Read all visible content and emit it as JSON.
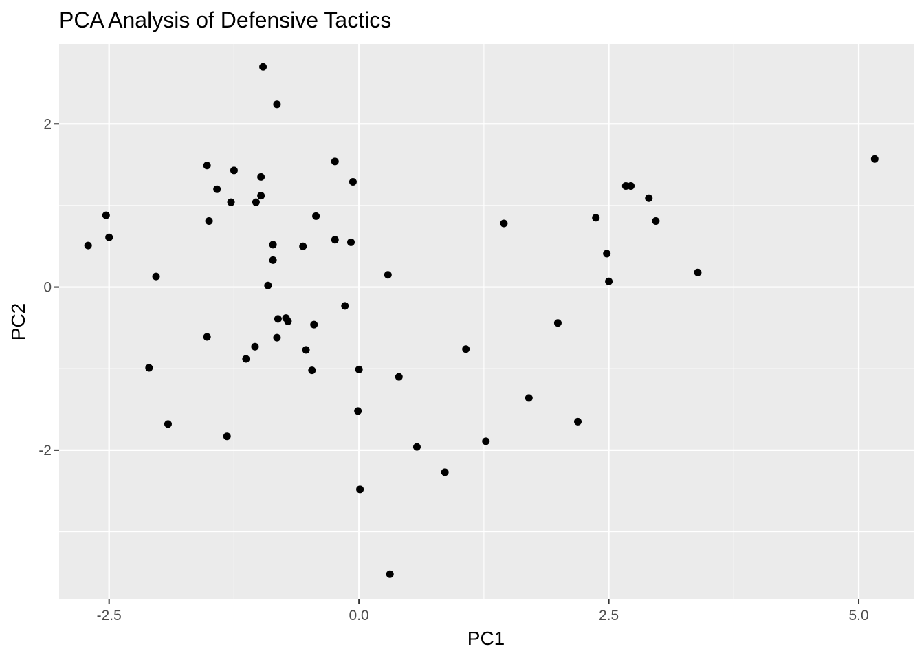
{
  "chart_data": {
    "type": "scatter",
    "title": "PCA Analysis of Defensive Tactics",
    "xlabel": "PC1",
    "ylabel": "PC2",
    "xlim": [
      -3.0,
      5.55
    ],
    "ylim": [
      -3.83,
      2.98
    ],
    "x_ticks": [
      -2.5,
      0.0,
      2.5,
      5.0
    ],
    "x_tick_labels": [
      "-2.5",
      "0.0",
      "2.5",
      "5.0"
    ],
    "y_ticks": [
      -2,
      0,
      2
    ],
    "y_tick_labels": [
      "-2",
      "0",
      "2"
    ],
    "x_minor_ticks": [
      -1.25,
      1.25,
      3.75
    ],
    "y_minor_ticks": [
      -3,
      -1,
      1
    ],
    "grid": true,
    "legend": "none",
    "colors": {
      "panel": "#ebebeb",
      "grid": "#ffffff",
      "point": "#000000"
    },
    "points": [
      {
        "x": -0.96,
        "y": 2.7
      },
      {
        "x": -0.82,
        "y": 2.24
      },
      {
        "x": -1.52,
        "y": 1.49
      },
      {
        "x": -1.25,
        "y": 1.43
      },
      {
        "x": -0.98,
        "y": 1.35
      },
      {
        "x": -1.42,
        "y": 1.2
      },
      {
        "x": -0.98,
        "y": 1.12
      },
      {
        "x": -1.28,
        "y": 1.04
      },
      {
        "x": -1.03,
        "y": 1.04
      },
      {
        "x": -1.5,
        "y": 0.81
      },
      {
        "x": -0.24,
        "y": 1.54
      },
      {
        "x": -0.06,
        "y": 1.29
      },
      {
        "x": -0.43,
        "y": 0.87
      },
      {
        "x": -0.24,
        "y": 0.58
      },
      {
        "x": -0.08,
        "y": 0.55
      },
      {
        "x": -0.86,
        "y": 0.52
      },
      {
        "x": -0.56,
        "y": 0.5
      },
      {
        "x": -0.86,
        "y": 0.33
      },
      {
        "x": -0.91,
        "y": 0.02
      },
      {
        "x": -2.53,
        "y": 0.88
      },
      {
        "x": -2.5,
        "y": 0.61
      },
      {
        "x": -2.71,
        "y": 0.51
      },
      {
        "x": -2.03,
        "y": 0.13
      },
      {
        "x": 0.29,
        "y": 0.15
      },
      {
        "x": -0.81,
        "y": -0.39
      },
      {
        "x": -0.73,
        "y": -0.38
      },
      {
        "x": -0.71,
        "y": -0.42
      },
      {
        "x": -0.45,
        "y": -0.46
      },
      {
        "x": -0.14,
        "y": -0.23
      },
      {
        "x": -1.52,
        "y": -0.61
      },
      {
        "x": -0.82,
        "y": -0.62
      },
      {
        "x": -1.04,
        "y": -0.73
      },
      {
        "x": -1.13,
        "y": -0.88
      },
      {
        "x": -0.53,
        "y": -0.77
      },
      {
        "x": -0.47,
        "y": -1.02
      },
      {
        "x": 0.0,
        "y": -1.01
      },
      {
        "x": 0.4,
        "y": -1.1
      },
      {
        "x": -2.1,
        "y": -0.99
      },
      {
        "x": -1.91,
        "y": -1.68
      },
      {
        "x": -1.32,
        "y": -1.83
      },
      {
        "x": -0.01,
        "y": -1.52
      },
      {
        "x": 0.58,
        "y": -1.96
      },
      {
        "x": 0.01,
        "y": -2.48
      },
      {
        "x": 0.86,
        "y": -2.27
      },
      {
        "x": 1.27,
        "y": -1.89
      },
      {
        "x": 1.07,
        "y": -0.76
      },
      {
        "x": 0.31,
        "y": -3.52
      },
      {
        "x": 1.45,
        "y": 0.78
      },
      {
        "x": 1.7,
        "y": -1.36
      },
      {
        "x": 1.99,
        "y": -0.44
      },
      {
        "x": 2.19,
        "y": -1.65
      },
      {
        "x": 2.37,
        "y": 0.85
      },
      {
        "x": 2.48,
        "y": 0.41
      },
      {
        "x": 2.5,
        "y": 0.07
      },
      {
        "x": 2.67,
        "y": 1.24
      },
      {
        "x": 2.72,
        "y": 1.24
      },
      {
        "x": 2.9,
        "y": 1.09
      },
      {
        "x": 2.97,
        "y": 0.81
      },
      {
        "x": 3.39,
        "y": 0.18
      },
      {
        "x": 5.16,
        "y": 1.57
      }
    ]
  }
}
